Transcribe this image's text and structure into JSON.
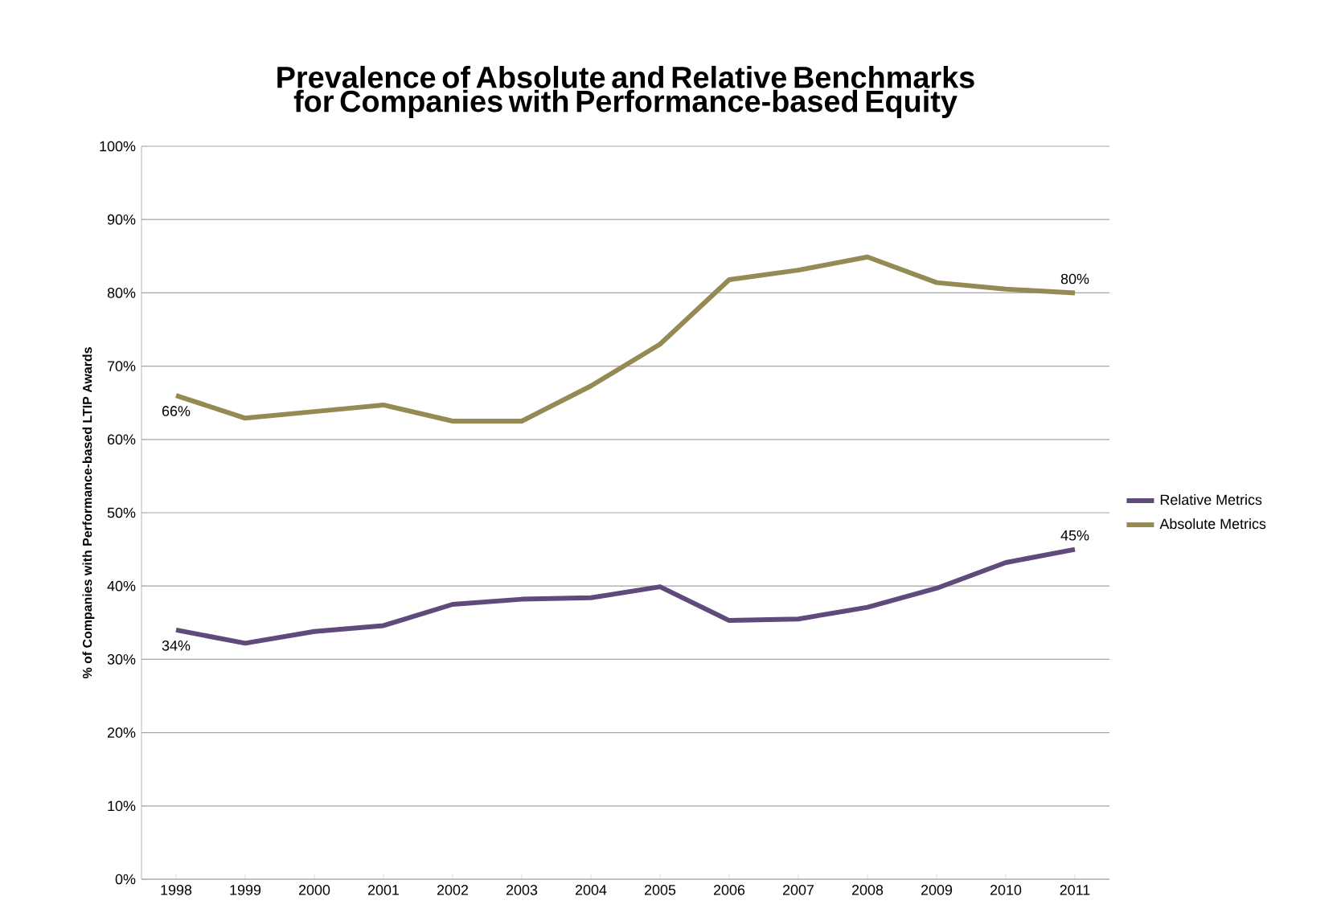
{
  "chart_data": {
    "type": "line",
    "title": "Prevalence of Absolute and Relative Benchmarks for Companies with Performance-based Equity",
    "ylabel": "% of Companies with Performance-based LTIP Awards",
    "categories": [
      "1998",
      "1999",
      "2000",
      "2001",
      "2002",
      "2003",
      "2004",
      "2005",
      "2006",
      "2007",
      "2008",
      "2009",
      "2010",
      "2011"
    ],
    "series": [
      {
        "name": "Relative Metrics",
        "color": "#604a7b",
        "values": [
          34,
          32.2,
          33.8,
          34.6,
          37.5,
          38.2,
          38.4,
          39.9,
          35.3,
          35.5,
          37.1,
          39.7,
          43.2,
          45
        ],
        "value_labels": [
          "34%",
          null,
          null,
          null,
          null,
          null,
          null,
          null,
          null,
          null,
          null,
          null,
          null,
          "45%"
        ]
      },
      {
        "name": "Absolute Metrics",
        "color": "#948a54",
        "values": [
          66,
          62.9,
          63.8,
          64.7,
          62.5,
          62.5,
          67.3,
          73.0,
          81.8,
          83.1,
          84.9,
          81.4,
          80.5,
          80
        ],
        "value_labels": [
          "66%",
          null,
          null,
          null,
          null,
          null,
          null,
          null,
          null,
          null,
          null,
          null,
          null,
          "80%"
        ]
      }
    ],
    "ylim": [
      0,
      100
    ],
    "yticks": [
      {
        "value": 0,
        "label": "0%"
      },
      {
        "value": 10,
        "label": "10%"
      },
      {
        "value": 20,
        "label": "20%"
      },
      {
        "value": 30,
        "label": "30%"
      },
      {
        "value": 40,
        "label": "40%"
      },
      {
        "value": 50,
        "label": "50%"
      },
      {
        "value": 60,
        "label": "60%"
      },
      {
        "value": 70,
        "label": "70%"
      },
      {
        "value": 80,
        "label": "80%"
      },
      {
        "value": 90,
        "label": "90%"
      },
      {
        "value": 100,
        "label": "100%"
      }
    ],
    "grid": "y",
    "legend": "right",
    "marker": "none",
    "line_style": "solid"
  }
}
